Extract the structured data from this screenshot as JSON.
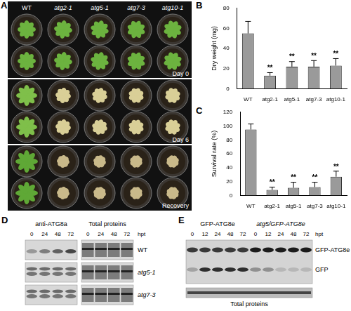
{
  "panel_letters": [
    "A",
    "B",
    "C",
    "D",
    "E"
  ],
  "panel_a": {
    "genotypes": [
      "WT",
      "atg2-1",
      "atg5-1",
      "atg7-3",
      "atg10-1"
    ],
    "stages": [
      "Day 0",
      "Day 6",
      "Recovery"
    ]
  },
  "chart_data": [
    {
      "type": "bar",
      "y_label": "Dry weight (mg)",
      "categories": [
        "WT",
        "atg2-1",
        "atg5-1",
        "atg7-3",
        "atg10-1"
      ],
      "values": [
        55,
        13,
        22,
        22,
        23
      ],
      "errors": [
        12,
        3,
        5,
        6,
        7
      ],
      "significance": [
        null,
        "**",
        "**",
        "**",
        "**"
      ],
      "color": "#9a9a9a",
      "ylim": [
        0,
        80
      ],
      "yticks": [
        0,
        20,
        40,
        60,
        80
      ],
      "grid": false
    },
    {
      "type": "bar",
      "y_label": "Survival rate (%)",
      "categories": [
        "WT",
        "atg2-1",
        "atg5-1",
        "atg7-3",
        "atg10-1"
      ],
      "values": [
        95,
        8,
        11,
        12,
        27
      ],
      "errors": [
        8,
        4,
        8,
        7,
        8
      ],
      "significance": [
        null,
        "**",
        "**",
        "**",
        "**"
      ],
      "color": "#9a9a9a",
      "ylim": [
        0,
        120
      ],
      "yticks": [
        0,
        20,
        40,
        60,
        80,
        100,
        120
      ],
      "grid": false
    }
  ],
  "panel_d": {
    "headers": [
      "anti-ATG8a",
      "Total proteins"
    ],
    "times": [
      0,
      24,
      48,
      72
    ],
    "time_unit": "hpt",
    "rows": [
      "WT",
      "atg5-1",
      "atg7-3"
    ]
  },
  "panel_e": {
    "headers": [
      "GFP-ATG8e",
      "atg5/GFP-ATG8e"
    ],
    "times": [
      0,
      12,
      24,
      48,
      72
    ],
    "time_unit": "hpt",
    "bands": [
      "GFP-ATG8e",
      "GFP"
    ],
    "loading": "Total proteins"
  }
}
